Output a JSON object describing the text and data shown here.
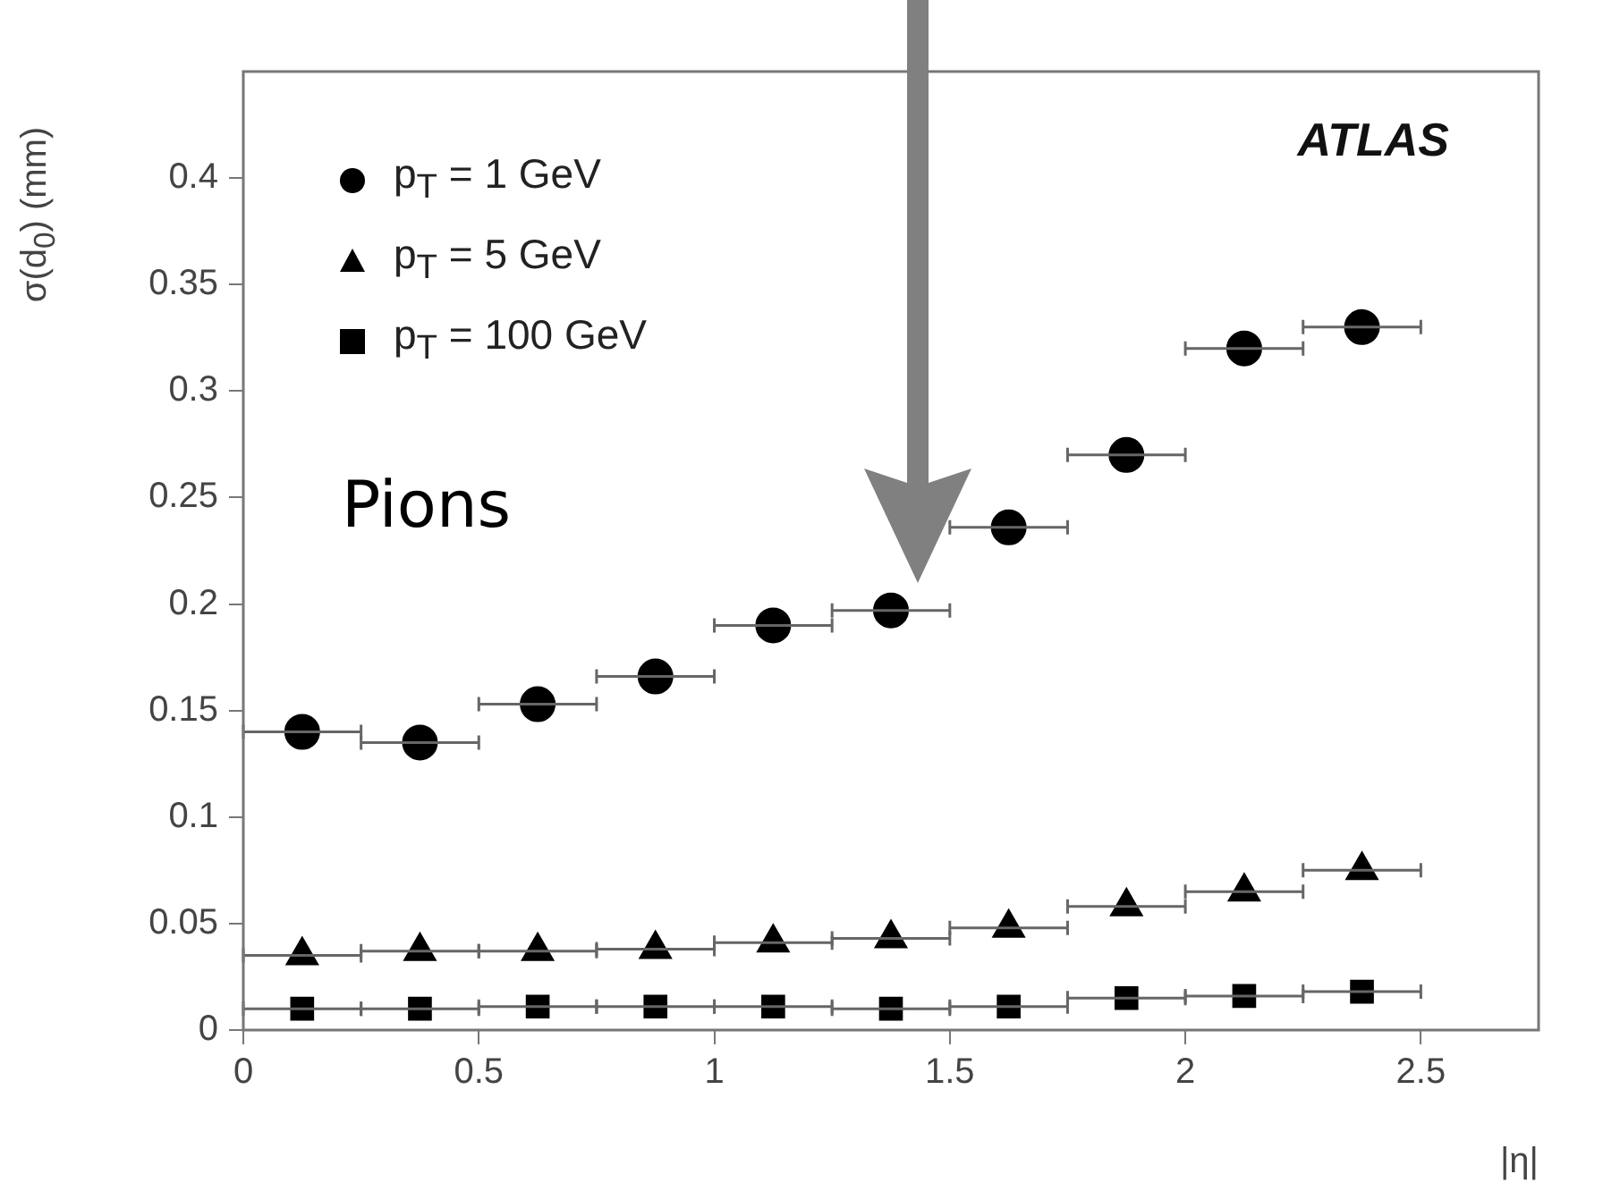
{
  "chart_data": {
    "type": "scatter",
    "ylabel": "σ(d$_{0}$) (mm)",
    "xlabel": "|η|",
    "x": [
      0.125,
      0.375,
      0.625,
      0.875,
      1.125,
      1.375,
      1.625,
      1.875,
      2.125,
      2.375
    ],
    "series": [
      {
        "name": "p$_{T}$ = 1 GeV",
        "color": "#000000",
        "marker": "circle",
        "values": [
          0.14,
          0.135,
          0.153,
          0.166,
          0.19,
          0.197,
          0.236,
          0.27,
          0.32,
          0.33
        ],
        "xerrors": [
          0.125,
          0.125,
          0.125,
          0.125,
          0.125,
          0.125,
          0.125,
          0.125,
          0.125,
          0.125
        ]
      },
      {
        "name": "p$_{T}$ = 5 GeV",
        "color": "#000000",
        "marker": "triangle",
        "values": [
          0.035,
          0.037,
          0.037,
          0.038,
          0.041,
          0.043,
          0.048,
          0.058,
          0.065,
          0.075
        ],
        "xerrors": [
          0.125,
          0.125,
          0.125,
          0.125,
          0.125,
          0.125,
          0.125,
          0.125,
          0.125,
          0.125
        ]
      },
      {
        "name": "p$_{T}$ = 100 GeV",
        "color": "#000000",
        "marker": "square",
        "values": [
          0.01,
          0.01,
          0.011,
          0.011,
          0.011,
          0.01,
          0.011,
          0.015,
          0.016,
          0.018
        ],
        "xerrors": [
          0.125,
          0.125,
          0.125,
          0.125,
          0.125,
          0.125,
          0.125,
          0.125,
          0.125,
          0.125
        ]
      }
    ],
    "xlim": [
      0,
      2.75
    ],
    "xticks": [
      0,
      0.5,
      1,
      1.5,
      2,
      2.5
    ],
    "ylim": [
      0,
      0.45
    ],
    "yticks": [
      0,
      0.05,
      0.1,
      0.15,
      0.2,
      0.25,
      0.3,
      0.35,
      0.4
    ],
    "grid": false,
    "legend": "top left",
    "annotations": [
      "ATLAS",
      "Pions"
    ]
  }
}
